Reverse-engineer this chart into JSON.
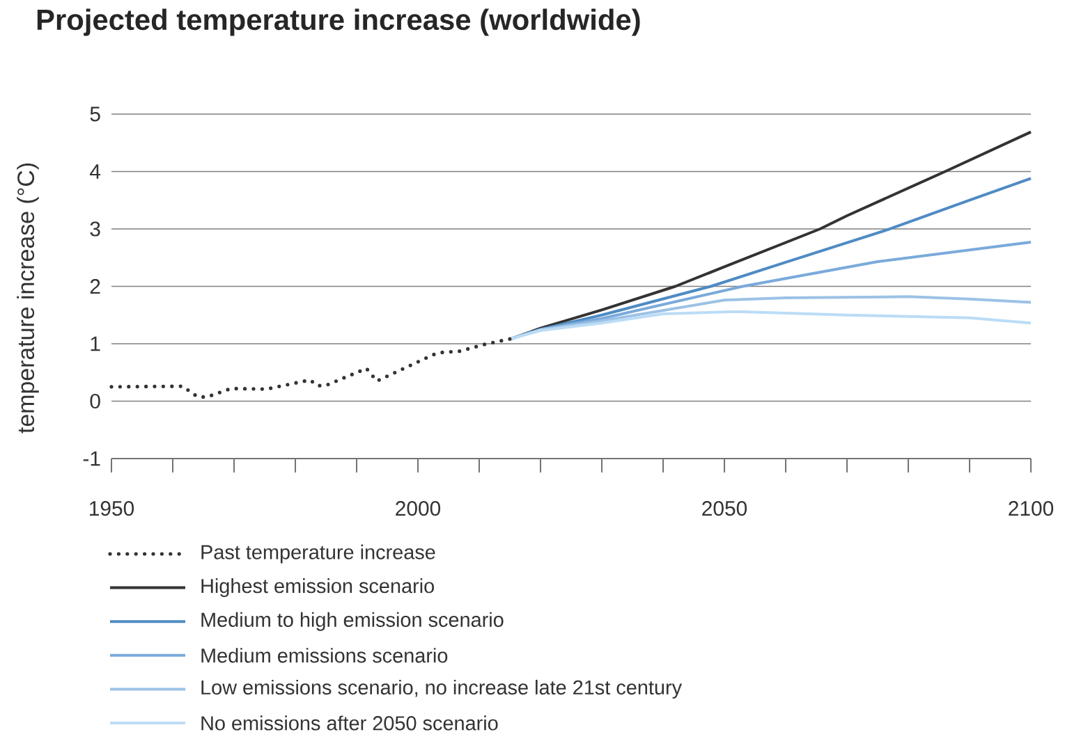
{
  "chart_data": {
    "type": "line",
    "title": "Projected temperature increase (worldwide)",
    "ylabel": "temperature increase (°C)",
    "xlim": [
      1950,
      2100
    ],
    "ylim": [
      -1,
      5
    ],
    "xticks": [
      1950,
      2000,
      2050,
      2100
    ],
    "yticks": [
      -1,
      0,
      1,
      2,
      3,
      4,
      5
    ],
    "grid": "y",
    "legend": "bottom",
    "series": [
      {
        "name": "Past temperature increase",
        "color": "#333333",
        "line_style": "dotted",
        "x": [
          1950,
          1961.6,
          1964,
          1965.5,
          1969.5,
          1975.3,
          1982.4,
          1983.6,
          1984.9,
          1991.6,
          1993.3,
          2002.5,
          2004,
          2006.8,
          2010.9,
          2015.3
        ],
        "values": [
          0.25,
          0.26,
          0.08,
          0.07,
          0.22,
          0.21,
          0.37,
          0.27,
          0.27,
          0.57,
          0.35,
          0.81,
          0.85,
          0.87,
          0.99,
          1.09
        ]
      },
      {
        "name": "Highest emission scenario",
        "color": "#333333",
        "line_style": "solid",
        "x": [
          2015.3,
          2020,
          2030,
          2042,
          2050,
          2065.6,
          2070,
          2086,
          2100
        ],
        "values": [
          1.09,
          1.27,
          1.59,
          2.0,
          2.34,
          3.0,
          3.23,
          4.0,
          4.69
        ]
      },
      {
        "name": "Medium to high emission scenario",
        "color": "#4f8bc4",
        "line_style": "solid",
        "x": [
          2015.3,
          2020,
          2030,
          2047.8,
          2060,
          2077,
          2090,
          2100
        ],
        "values": [
          1.09,
          1.25,
          1.5,
          2.0,
          2.42,
          3.0,
          3.5,
          3.88
        ]
      },
      {
        "name": "Medium emissions scenario",
        "color": "#7aaadb",
        "line_style": "solid",
        "x": [
          2015.3,
          2020,
          2030,
          2053,
          2075,
          2100
        ],
        "values": [
          1.09,
          1.25,
          1.44,
          2.0,
          2.43,
          2.77
        ]
      },
      {
        "name": "Low emissions scenario, no increase late 21st century",
        "color": "#9cc2e5",
        "line_style": "solid",
        "x": [
          2015.3,
          2020,
          2030,
          2050,
          2060,
          2080,
          2090,
          2100
        ],
        "values": [
          1.09,
          1.24,
          1.4,
          1.76,
          1.8,
          1.82,
          1.78,
          1.72
        ]
      },
      {
        "name": "No emissions after 2050 scenario",
        "color": "#bcdcf5",
        "line_style": "solid",
        "x": [
          2015.3,
          2020,
          2030,
          2040,
          2052,
          2070,
          2090,
          2100
        ],
        "values": [
          1.09,
          1.23,
          1.36,
          1.52,
          1.56,
          1.5,
          1.45,
          1.36
        ]
      }
    ]
  }
}
